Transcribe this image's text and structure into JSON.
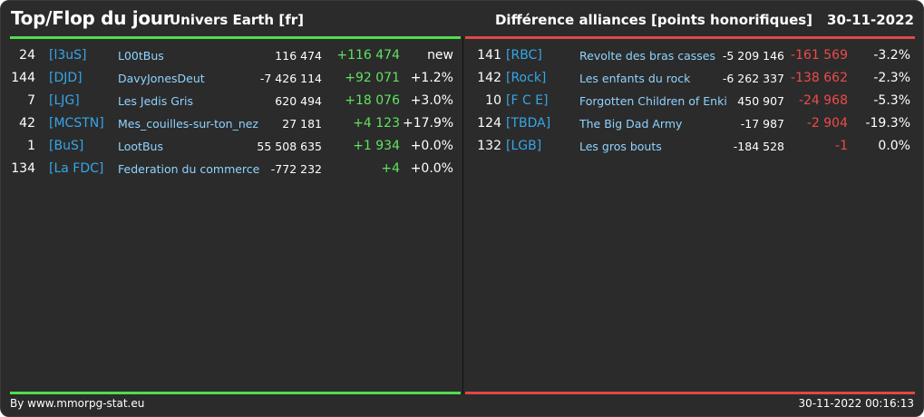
{
  "header": {
    "title": "Top/Flop du jour",
    "subtitle": "Univers Earth [fr]",
    "right_title": "Différence alliances [points honorifiques]",
    "date": "30-11-2022"
  },
  "colors": {
    "background": "#2b2b2b",
    "top_accent": "#4dde4d",
    "flop_accent": "#e04848",
    "tag": "#35a6e8",
    "name": "#8fd3ff"
  },
  "top": [
    {
      "rank": "24",
      "tag": "[l3uS]",
      "name": "L00tBus",
      "points": "116 474",
      "diff": "+116 474",
      "pct": "new"
    },
    {
      "rank": "144",
      "tag": "[DJD]",
      "name": "DavyJonesDeut",
      "points": "-7 426 114",
      "diff": "+92 071",
      "pct": "+1.2%"
    },
    {
      "rank": "7",
      "tag": "[LJG]",
      "name": "Les Jedis Gris",
      "points": "620 494",
      "diff": "+18 076",
      "pct": "+3.0%"
    },
    {
      "rank": "42",
      "tag": "[MCSTN]",
      "name": "Mes_couilles-sur-ton_nez",
      "points": "27 181",
      "diff": "+4 123",
      "pct": "+17.9%"
    },
    {
      "rank": "1",
      "tag": "[BuS]",
      "name": "LootBus",
      "points": "55 508 635",
      "diff": "+1 934",
      "pct": "+0.0%"
    },
    {
      "rank": "134",
      "tag": "[La FDC]",
      "name": "Federation du commerce",
      "points": "-772 232",
      "diff": "+4",
      "pct": "+0.0%"
    }
  ],
  "flop": [
    {
      "rank": "141",
      "tag": "[RBC]",
      "name": "Revolte des bras casses",
      "points": "-5 209 146",
      "diff": "-161 569",
      "pct": "-3.2%"
    },
    {
      "rank": "142",
      "tag": "[Rock]",
      "name": "Les enfants du rock",
      "points": "-6 262 337",
      "diff": "-138 662",
      "pct": "-2.3%"
    },
    {
      "rank": "10",
      "tag": "[F C E]",
      "name": "Forgotten Children of Enki",
      "points": "450 907",
      "diff": "-24 968",
      "pct": "-5.3%"
    },
    {
      "rank": "124",
      "tag": "[TBDA]",
      "name": "The Big Dad Army",
      "points": "-17 987",
      "diff": "-2 904",
      "pct": "-19.3%"
    },
    {
      "rank": "132",
      "tag": "[LGB]",
      "name": "Les gros bouts",
      "points": "-184 528",
      "diff": "-1",
      "pct": "0.0%"
    }
  ],
  "footer": {
    "credit": "By www.mmorpg-stat.eu",
    "timestamp": "30-11-2022 00:16:13"
  }
}
